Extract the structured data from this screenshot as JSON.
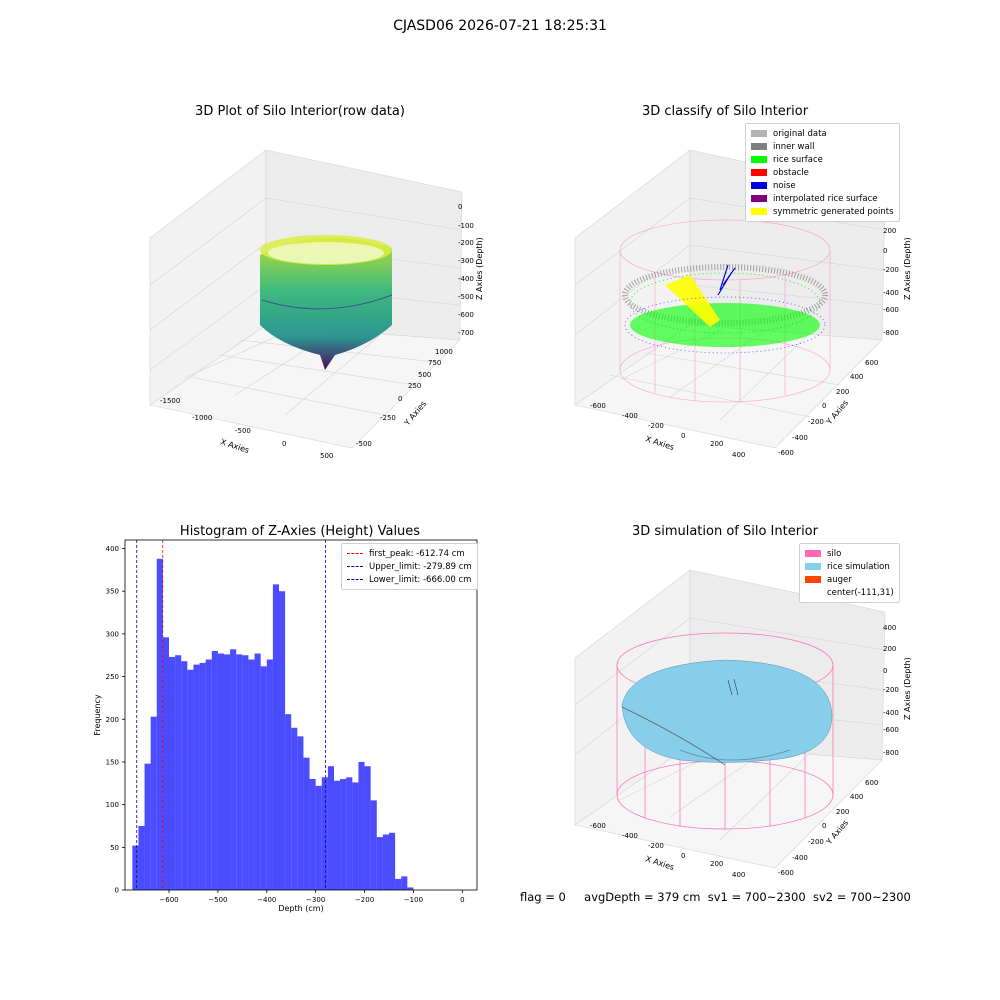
{
  "suptitle": "CJASD06 2026-07-21 18:25:31",
  "panels": {
    "raw": {
      "title": "3D Plot of Silo Interior(row data)",
      "xlabel": "X Axies",
      "ylabel": "Y Axies",
      "zlabel": "Z Axies (Depth)",
      "xticks": [
        "-1500",
        "-1000",
        "-500",
        "0",
        "500"
      ],
      "yticks": [
        "-500",
        "-250",
        "0",
        "250",
        "500",
        "750",
        "1000"
      ],
      "zticks": [
        "0",
        "-100",
        "-200",
        "-300",
        "-400",
        "-500",
        "-600",
        "-700"
      ]
    },
    "classify": {
      "title": "3D classify of Silo Interior",
      "xlabel": "X Axies",
      "ylabel": "Y Axies",
      "zlabel": "Z Axies (Depth)",
      "xticks": [
        "-600",
        "-400",
        "-200",
        "0",
        "200",
        "400"
      ],
      "yticks": [
        "-600",
        "-400",
        "-200",
        "0",
        "200",
        "400",
        "600"
      ],
      "zticks": [
        "400",
        "200",
        "0",
        "-200",
        "-400",
        "-600",
        "-800"
      ],
      "legend": [
        {
          "label": "original data",
          "color": "#b3b3b3"
        },
        {
          "label": "inner wall",
          "color": "#808080"
        },
        {
          "label": "rice surface",
          "color": "#00ff00"
        },
        {
          "label": "obstacle",
          "color": "#ff0000"
        },
        {
          "label": "noise",
          "color": "#0000dd"
        },
        {
          "label": "interpolated rice surface",
          "color": "#800080"
        },
        {
          "label": "symmetric generated points",
          "color": "#ffff00"
        }
      ]
    },
    "simulation": {
      "title": "3D simulation of Silo Interior",
      "xlabel": "X Axies",
      "ylabel": "Y Axies",
      "zlabel": "Z Axies (Depth)",
      "xticks": [
        "-600",
        "-400",
        "-200",
        "0",
        "200",
        "400"
      ],
      "yticks": [
        "-600",
        "-400",
        "-200",
        "0",
        "200",
        "400",
        "600"
      ],
      "zticks": [
        "400",
        "200",
        "0",
        "-200",
        "-400",
        "-600",
        "-800"
      ],
      "legend": [
        {
          "label": "silo",
          "color": "#ff69b4"
        },
        {
          "label": "rice simulation",
          "color": "#87ceeb"
        },
        {
          "label": "auger",
          "color": "#ff4500"
        },
        {
          "label": "center(-111,31)",
          "color": ""
        }
      ]
    }
  },
  "chart_data": {
    "type": "bar",
    "title": "Histogram of Z-Axies (Height) Values",
    "xlabel": "Depth (cm)",
    "ylabel": "Frequency",
    "xlim": [
      -690,
      30
    ],
    "ylim": [
      0,
      410
    ],
    "xticks": [
      -600,
      -500,
      -400,
      -300,
      -200,
      -100,
      0
    ],
    "yticks": [
      0,
      50,
      100,
      150,
      200,
      250,
      300,
      350,
      400
    ],
    "bin_start": -675,
    "bin_width": 12.5,
    "values": [
      52,
      75,
      148,
      203,
      388,
      296,
      273,
      275,
      268,
      258,
      264,
      266,
      270,
      280,
      277,
      276,
      282,
      276,
      275,
      270,
      277,
      262,
      270,
      358,
      350,
      206,
      190,
      180,
      155,
      130,
      122,
      132,
      145,
      128,
      130,
      132,
      126,
      150,
      145,
      105,
      62,
      65,
      67,
      13,
      16,
      3
    ],
    "bar_color": "#0000ff",
    "vlines": [
      {
        "label": "first_peak: -612.74 cm",
        "x": -612.74,
        "color": "#ff0000"
      },
      {
        "label": "Upper_limit: -279.89 cm",
        "x": -279.89,
        "color": "#0000aa"
      },
      {
        "label": "Lower_limit: -666.00 cm",
        "x": -666.0,
        "color": "#0000aa"
      }
    ],
    "legend_position": "upper right"
  },
  "status": {
    "flag": "flag = 0",
    "avg": "avgDepth = 379 cm",
    "sv1": "sv1 = 700~2300",
    "sv2": "sv2 = 700~2300"
  }
}
